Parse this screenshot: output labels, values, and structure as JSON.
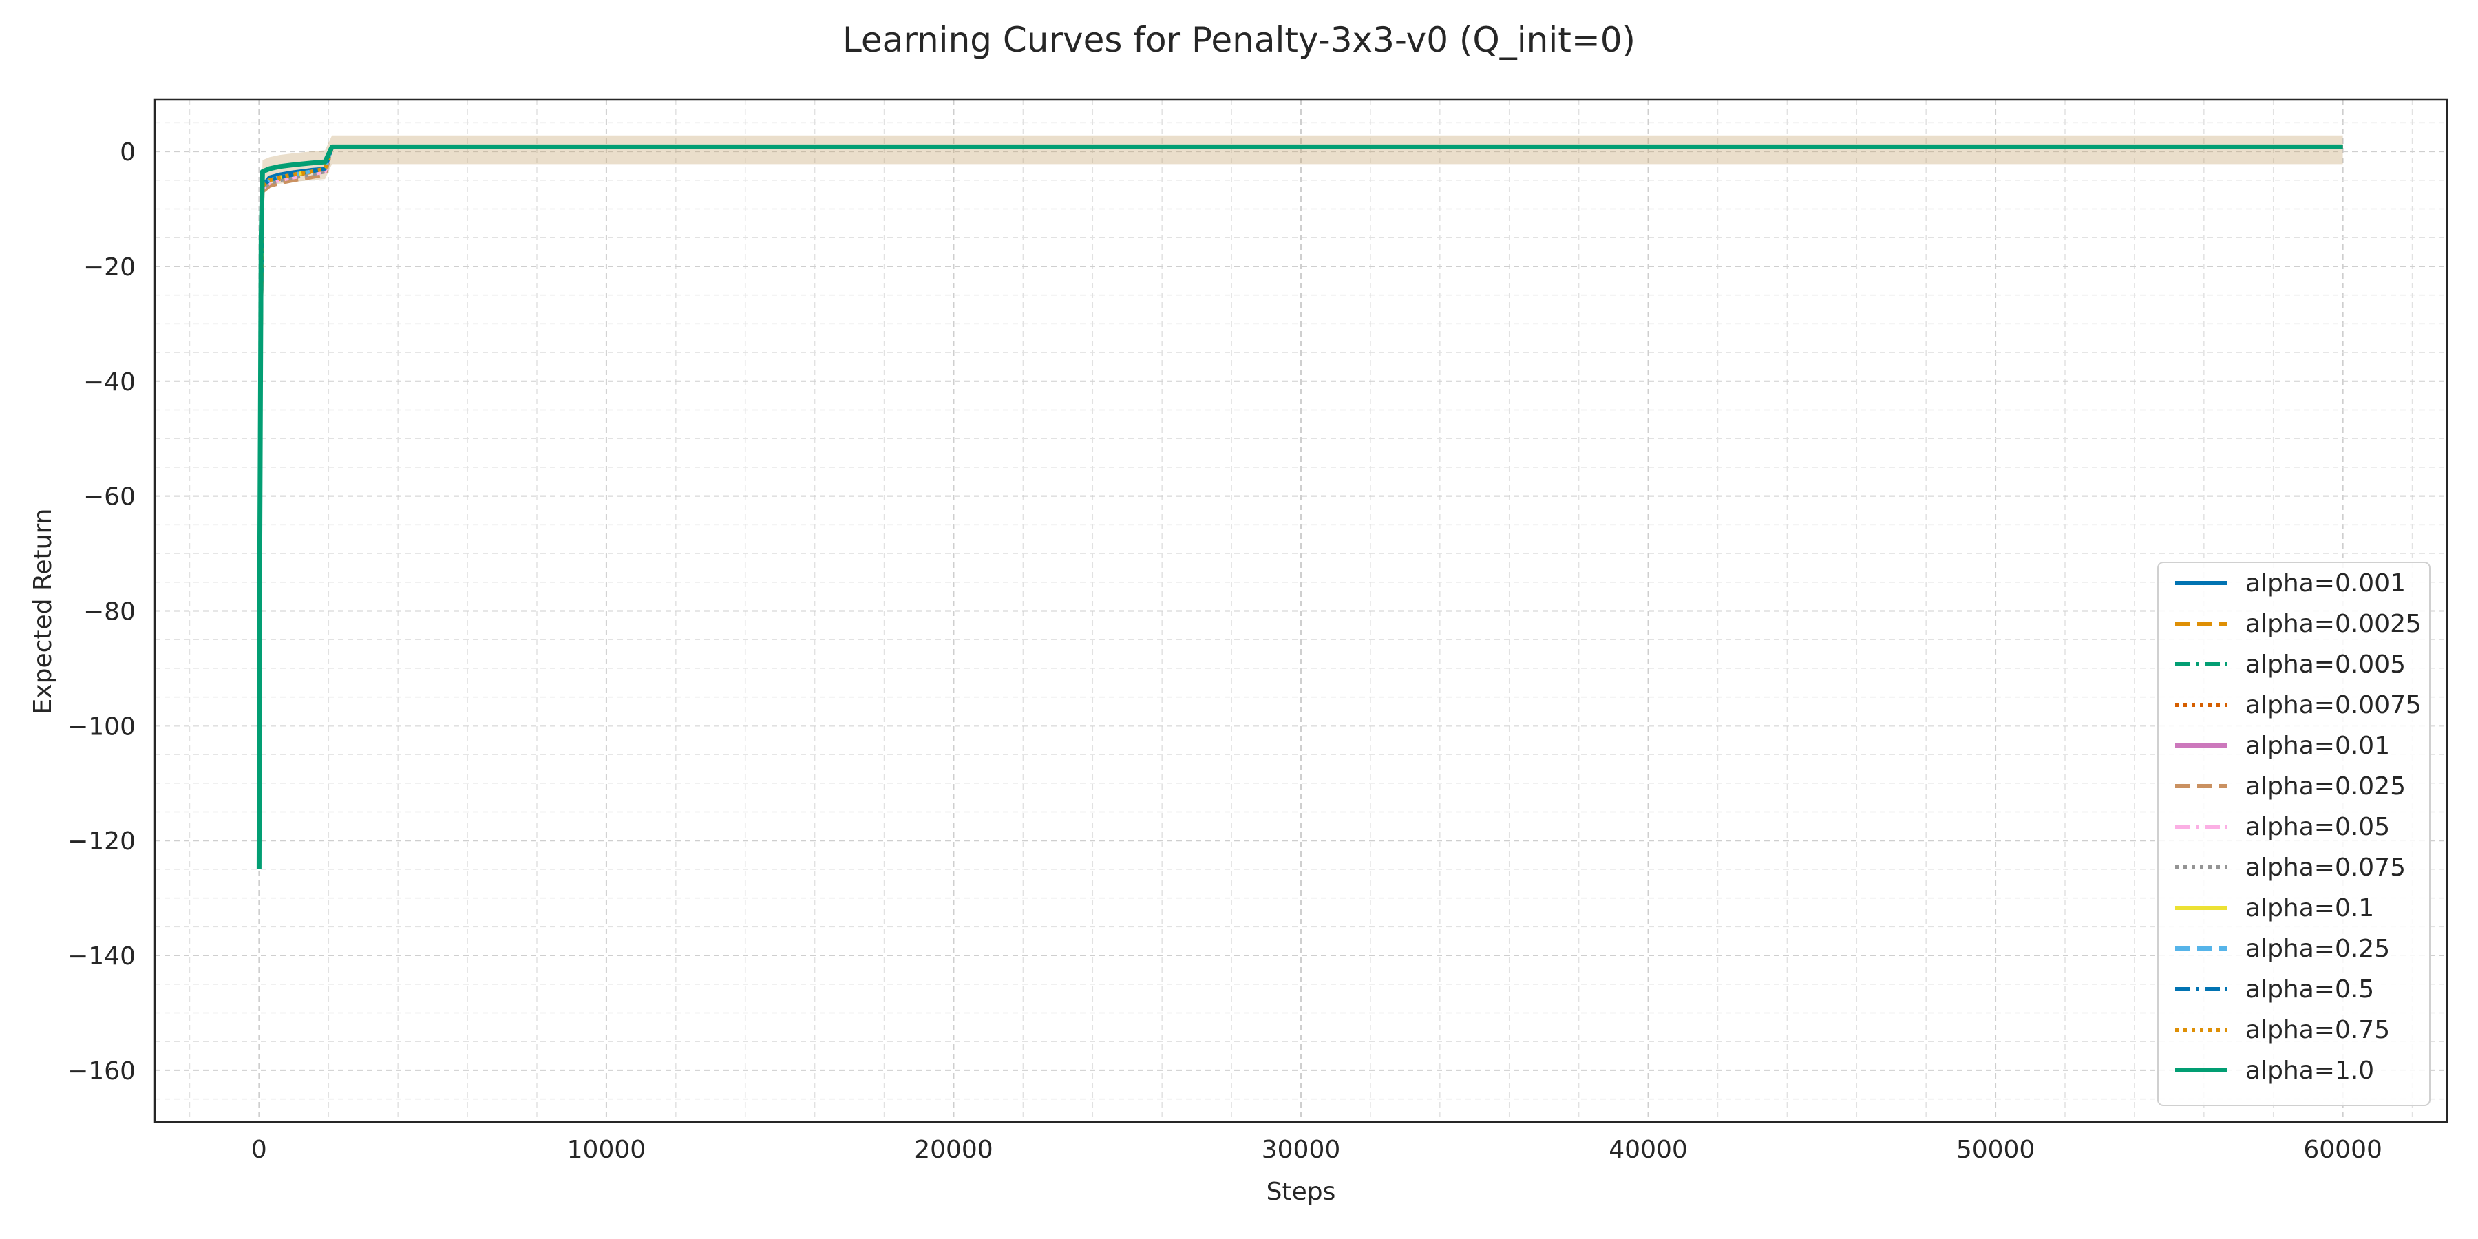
{
  "chart_data": {
    "type": "line",
    "title": "Learning Curves for Penalty-3x3-v0 (Q_init=0)",
    "xlabel": "Steps",
    "ylabel": "Expected Return",
    "xlim": [
      -3000,
      63000
    ],
    "ylim": [
      -169,
      9
    ],
    "xticks": [
      0,
      10000,
      20000,
      30000,
      40000,
      50000,
      60000
    ],
    "yticks": [
      0,
      -20,
      -40,
      -60,
      -80,
      -100,
      -120,
      -140,
      -160
    ],
    "grid": true,
    "legend_position": "lower right",
    "series": [
      {
        "name": "alpha=0.001",
        "color": "#0173b2",
        "dash": "solid",
        "x": [
          0,
          40,
          100,
          300,
          600,
          1000,
          1500,
          1900,
          2100,
          2500,
          60000
        ],
        "y": [
          -95,
          -40,
          -6,
          -4.5,
          -4,
          -3.6,
          -3.2,
          -3,
          0.8,
          0.8,
          0.8
        ]
      },
      {
        "name": "alpha=0.0025",
        "color": "#de8f05",
        "dash": "dashed",
        "x": [
          0,
          40,
          100,
          300,
          600,
          1000,
          1500,
          1900,
          2100,
          2500,
          60000
        ],
        "y": [
          -100,
          -40,
          -7,
          -5.5,
          -4.8,
          -4.2,
          -3.6,
          -3.2,
          0.8,
          0.8,
          0.8
        ]
      },
      {
        "name": "alpha=0.005",
        "color": "#029e73",
        "dash": "dashdot",
        "x": [
          0,
          40,
          100,
          300,
          600,
          1000,
          1500,
          1900,
          2100,
          2500,
          60000
        ],
        "y": [
          -98,
          -40,
          -6.5,
          -5,
          -4.5,
          -4,
          -3.5,
          -3.1,
          0.8,
          0.8,
          0.8
        ]
      },
      {
        "name": "alpha=0.0075",
        "color": "#d55e00",
        "dash": "dotted",
        "x": [
          0,
          40,
          100,
          300,
          600,
          1000,
          1500,
          1900,
          2100,
          2500,
          60000
        ],
        "y": [
          -97,
          -40,
          -6.5,
          -5,
          -4.5,
          -4,
          -3.5,
          -3.1,
          0.8,
          0.8,
          0.8
        ]
      },
      {
        "name": "alpha=0.01",
        "color": "#cc78bc",
        "dash": "solid",
        "x": [
          0,
          40,
          100,
          300,
          600,
          1000,
          1500,
          1900,
          2100,
          2500,
          60000
        ],
        "y": [
          -96,
          -40,
          -6.5,
          -5,
          -4.5,
          -4,
          -3.5,
          -3.1,
          0.8,
          0.8,
          0.8
        ]
      },
      {
        "name": "alpha=0.025",
        "color": "#ca9161",
        "dash": "dashed",
        "x": [
          0,
          40,
          100,
          300,
          600,
          1000,
          1500,
          1900,
          2100,
          2500,
          60000
        ],
        "y": [
          -95,
          -40,
          -7,
          -6,
          -5.5,
          -5,
          -4.5,
          -4,
          0.8,
          0.8,
          0.8
        ]
      },
      {
        "name": "alpha=0.05",
        "color": "#fbafe4",
        "dash": "dashdot",
        "x": [
          0,
          40,
          100,
          300,
          600,
          1000,
          1500,
          1900,
          2100,
          2500,
          60000
        ],
        "y": [
          -95,
          -40,
          -6.5,
          -5.5,
          -5,
          -4.5,
          -4,
          -3.5,
          0.8,
          0.8,
          0.8
        ]
      },
      {
        "name": "alpha=0.075",
        "color": "#949494",
        "dash": "dotted",
        "x": [
          0,
          40,
          100,
          300,
          600,
          1000,
          1500,
          1900,
          2100,
          2500,
          60000
        ],
        "y": [
          -95,
          -40,
          -6.5,
          -5.5,
          -5,
          -4.5,
          -4,
          -3.5,
          0.8,
          0.8,
          0.8
        ]
      },
      {
        "name": "alpha=0.1",
        "color": "#ece133",
        "dash": "solid",
        "x": [
          0,
          40,
          100,
          300,
          600,
          1000,
          1500,
          1900,
          2100,
          2500,
          60000
        ],
        "y": [
          -120,
          -40,
          -6,
          -5,
          -4.5,
          -4,
          -3.5,
          -3,
          0.8,
          0.8,
          0.8
        ]
      },
      {
        "name": "alpha=0.25",
        "color": "#56b4e9",
        "dash": "dashed",
        "x": [
          0,
          40,
          100,
          300,
          600,
          1000,
          1500,
          1900,
          2100,
          2500,
          60000
        ],
        "y": [
          -90,
          -40,
          -6,
          -5,
          -4.5,
          -4,
          -3.5,
          -3,
          0.8,
          0.8,
          0.8
        ]
      },
      {
        "name": "alpha=0.5",
        "color": "#0173b2",
        "dash": "dashdot",
        "x": [
          0,
          40,
          100,
          300,
          600,
          1000,
          1500,
          1900,
          2100,
          2500,
          60000
        ],
        "y": [
          -95,
          -40,
          -6,
          -5,
          -4.5,
          -4,
          -3.5,
          -3,
          0.8,
          0.8,
          0.8
        ]
      },
      {
        "name": "alpha=0.75",
        "color": "#de8f05",
        "dash": "dotted",
        "x": [
          0,
          40,
          100,
          300,
          600,
          1000,
          1500,
          1900,
          2100,
          2500,
          60000
        ],
        "y": [
          -85,
          -40,
          -6,
          -5,
          -4.5,
          -4,
          -3.5,
          -3,
          0.8,
          0.8,
          0.8
        ]
      },
      {
        "name": "alpha=1.0",
        "color": "#029e73",
        "dash": "solid",
        "x": [
          0,
          20,
          60,
          100,
          300,
          600,
          1000,
          1500,
          1900,
          2100,
          2500,
          60000
        ],
        "y": [
          -125,
          -70,
          -15,
          -3.5,
          -3,
          -2.6,
          -2.3,
          -2,
          -1.8,
          0.8,
          0.8,
          0.8
        ]
      }
    ]
  }
}
